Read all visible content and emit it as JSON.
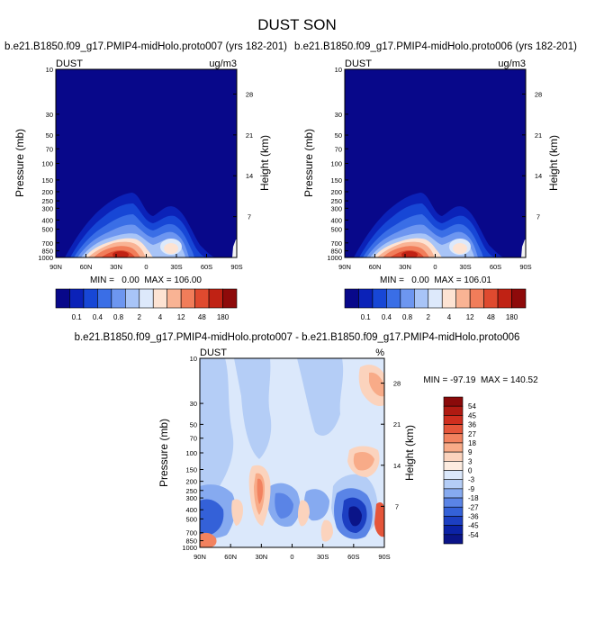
{
  "main_title": "DUST SON",
  "chart_data": [
    {
      "type": "heatmap",
      "id": "left",
      "title": "b.e21.B1850.f09_g17.PMIP4-midHolo.proto007 (yrs 182-201)",
      "left_label": "DUST",
      "right_label": "ug/m3",
      "ylabel": "Pressure (mb)",
      "y2label": "Height (km)",
      "xticks": [
        "90N",
        "60N",
        "30N",
        "0",
        "30S",
        "60S",
        "90S"
      ],
      "yticks": [
        "10",
        "30",
        "50",
        "70",
        "100",
        "150",
        "200",
        "250",
        "300",
        "400",
        "500",
        "700",
        "850",
        "1000"
      ],
      "y2ticks": [
        "28",
        "21",
        "14",
        "7"
      ],
      "stats": "MIN =   0.00  MAX = 106.00",
      "colorbar_labels": [
        "0.1",
        "0.4",
        "0.8",
        "2",
        "4",
        "12",
        "48",
        "180"
      ]
    },
    {
      "type": "heatmap",
      "id": "right",
      "title": "b.e21.B1850.f09_g17.PMIP4-midHolo.proto006 (yrs 182-201)",
      "left_label": "DUST",
      "right_label": "ug/m3",
      "ylabel": "Pressure (mb)",
      "y2label": "Height (km)",
      "xticks": [
        "90N",
        "60N",
        "30N",
        "0",
        "30S",
        "60S",
        "90S"
      ],
      "yticks": [
        "10",
        "30",
        "50",
        "70",
        "100",
        "150",
        "200",
        "250",
        "300",
        "400",
        "500",
        "700",
        "850",
        "1000"
      ],
      "y2ticks": [
        "28",
        "21",
        "14",
        "7"
      ],
      "stats": "MIN =   0.00  MAX = 106.01",
      "colorbar_labels": [
        "0.1",
        "0.4",
        "0.8",
        "2",
        "4",
        "12",
        "48",
        "180"
      ]
    },
    {
      "type": "heatmap",
      "id": "diff",
      "title": "b.e21.B1850.f09_g17.PMIP4-midHolo.proto007 - b.e21.B1850.f09_g17.PMIP4-midHolo.proto006",
      "left_label": "DUST",
      "right_label": "%",
      "ylabel": "Pressure (mb)",
      "y2label": "Height (km)",
      "xticks": [
        "90N",
        "60N",
        "30N",
        "0",
        "30S",
        "60S",
        "90S"
      ],
      "yticks": [
        "10",
        "30",
        "50",
        "70",
        "100",
        "150",
        "200",
        "250",
        "300",
        "400",
        "500",
        "700",
        "850",
        "1000"
      ],
      "y2ticks": [
        "28",
        "21",
        "14",
        "7"
      ],
      "stats": "MIN = -97.19  MAX = 140.52",
      "colorbar_labels": [
        "54",
        "45",
        "36",
        "27",
        "18",
        "9",
        "3",
        "0",
        "-3",
        "-9",
        "-18",
        "-27",
        "-36",
        "-45",
        "-54"
      ]
    }
  ],
  "colors": {
    "abs_scale": [
      "#08088a",
      "#0b22b8",
      "#1747d6",
      "#3a6ee6",
      "#6d96f0",
      "#a8c4f7",
      "#dde9fb",
      "#fde3d3",
      "#f9b394",
      "#f17d5a",
      "#df4a2f",
      "#c02214",
      "#8e0a0a"
    ],
    "diff_scale": [
      "#8a0a0a",
      "#b01a12",
      "#cf2e1f",
      "#e5553a",
      "#f2825f",
      "#f8ab88",
      "#fbd3bd",
      "#fdece0",
      "#dbe8fb",
      "#b4cdf6",
      "#86aaf0",
      "#5a84e6",
      "#3461d8",
      "#1c3fc2",
      "#0b22a6",
      "#0a1488"
    ]
  }
}
